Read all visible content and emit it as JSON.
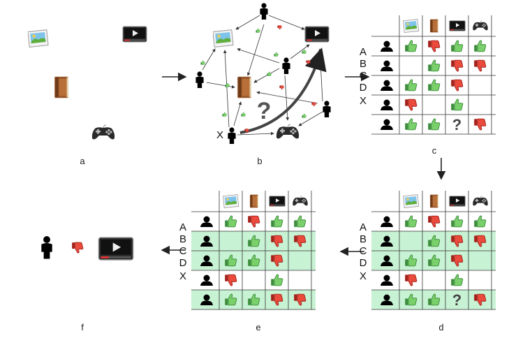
{
  "panels": {
    "a": "a",
    "b": "b",
    "c": "c",
    "d": "d",
    "e": "e",
    "f": "f"
  },
  "row_labels": [
    "A",
    "B",
    "C",
    "D",
    "X"
  ],
  "unknown_mark": "?",
  "target_user_label": "X",
  "items": [
    "photo-icon",
    "book-icon",
    "video-icon",
    "gamepad-icon"
  ],
  "matrix_c": [
    [
      "up",
      "down",
      "up",
      "up"
    ],
    [
      "",
      "up",
      "down",
      "down"
    ],
    [
      "up",
      "up",
      "down",
      ""
    ],
    [
      "down",
      "",
      "up",
      ""
    ],
    [
      "up",
      "up",
      "?",
      "down"
    ]
  ],
  "matrix_e": [
    [
      "up",
      "down",
      "up",
      "up"
    ],
    [
      "",
      "up",
      "down",
      "down"
    ],
    [
      "up",
      "up",
      "down",
      ""
    ],
    [
      "down",
      "",
      "up",
      ""
    ],
    [
      "up",
      "up",
      "down",
      "down"
    ]
  ],
  "highlight_rows_d": [
    1,
    2,
    4
  ],
  "highlight_rows_e": [
    1,
    2,
    4
  ],
  "colors": {
    "up": "#5cb85c",
    "down": "#e03a2f",
    "highlight": "#c8f2d4",
    "grid": "#333333"
  }
}
